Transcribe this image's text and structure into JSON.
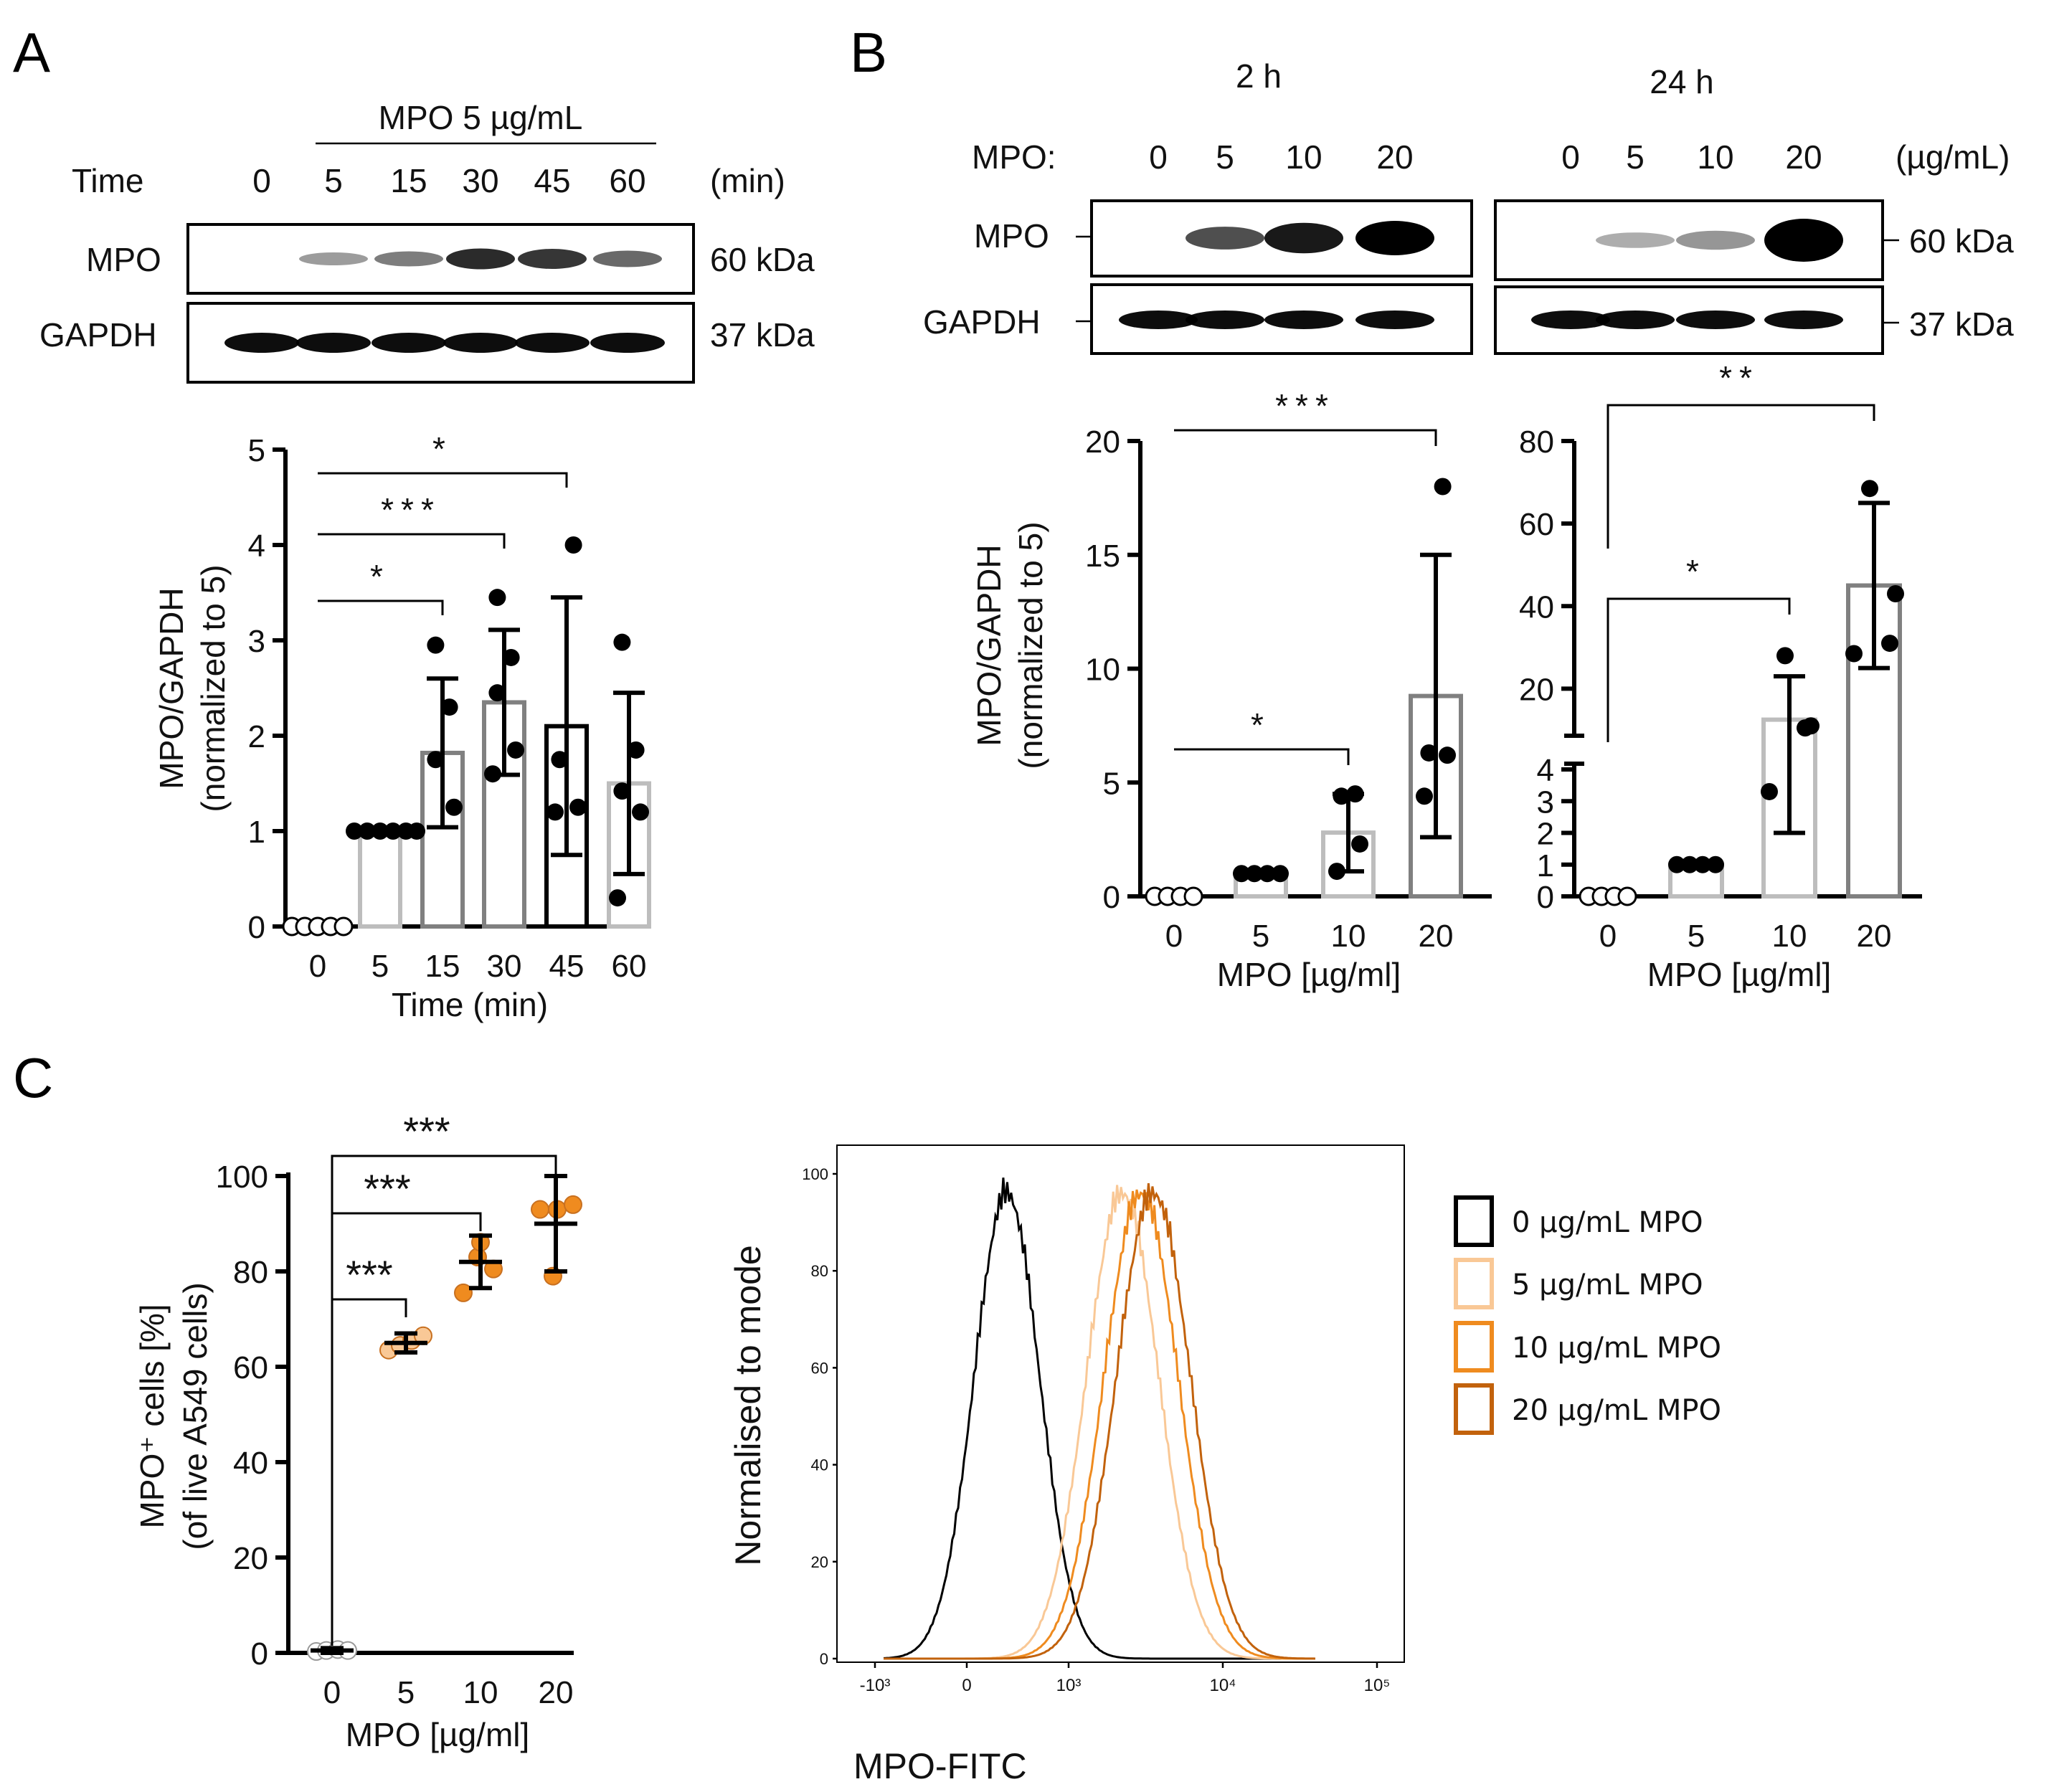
{
  "panel_labels": {
    "a": "A",
    "b": "B",
    "c": "C"
  },
  "colors": {
    "c0": "#000000",
    "c5": "#f9c896",
    "c10": "#ef8b1f",
    "c20": "#c2620c",
    "bar_light": "#bdbdbd",
    "bar_mid": "#808080",
    "bar_dark": "#000000"
  },
  "blotA": {
    "header": "MPO 5 µg/mL",
    "time_label": "Time",
    "time_values": [
      "0",
      "5",
      "15",
      "30",
      "45",
      "60"
    ],
    "time_unit": "(min)",
    "rows": [
      "MPO",
      "GAPDH"
    ],
    "sizes": [
      "60 kDa",
      "37 kDa"
    ],
    "band_intensity": {
      "MPO": [
        0,
        0.3,
        0.45,
        0.85,
        0.8,
        0.55
      ],
      "GAPDH": [
        1,
        1,
        1,
        1,
        1,
        1
      ]
    }
  },
  "blotB": {
    "time_2h": "2 h",
    "time_24h": "24 h",
    "mpo_label": "MPO:",
    "conc_values": [
      "0",
      "5",
      "10",
      "20"
    ],
    "conc_unit": "(µg/mL)",
    "rows": [
      "MPO",
      "GAPDH"
    ],
    "sizes": [
      "60 kDa",
      "37 kDa"
    ],
    "band_intensity_2h": {
      "MPO": [
        0,
        0.55,
        0.85,
        1
      ],
      "GAPDH": [
        1,
        1,
        1,
        1
      ]
    },
    "band_intensity_24h": {
      "MPO": [
        0,
        0.2,
        0.3,
        1
      ],
      "GAPDH": [
        1,
        1,
        1,
        1
      ]
    }
  },
  "chart_data": [
    {
      "type": "bar",
      "panel": "A",
      "categories": [
        "0",
        "5",
        "15",
        "30",
        "45",
        "60"
      ],
      "xlabel": "Time (min)",
      "ylabel": [
        "MPO/GAPDH",
        "(normalized to 5)"
      ],
      "ylim": [
        0,
        5
      ],
      "yticks": [
        "0",
        "1",
        "2",
        "3",
        "4",
        "5"
      ],
      "means": [
        0,
        1,
        1.82,
        2.35,
        2.1,
        1.5
      ],
      "sd": [
        0,
        0,
        0.78,
        0.76,
        1.35,
        0.95
      ],
      "points": [
        [
          0,
          0,
          0,
          0,
          0
        ],
        [
          1,
          1,
          1,
          1,
          1
        ],
        [
          1.0,
          1.25,
          1.75,
          2.3,
          2.95
        ],
        [
          1.6,
          1.85,
          2.45,
          2.82,
          3.45
        ],
        [
          1.2,
          1.25,
          1.75,
          4.0
        ],
        [
          0.3,
          1.2,
          1.42,
          1.85,
          2.98
        ]
      ],
      "significance": [
        {
          "from": "0",
          "to": "15",
          "label": "*"
        },
        {
          "from": "0",
          "to": "30",
          "label": "***"
        },
        {
          "from": "0",
          "to": "45",
          "label": "*"
        }
      ]
    },
    {
      "type": "bar",
      "panel": "B-2h",
      "categories": [
        "0",
        "5",
        "10",
        "20"
      ],
      "xlabel": "MPO [µg/ml]",
      "ylabel": [
        "MPO/GAPDH",
        "(normalized to 5)"
      ],
      "ylim": [
        0,
        20
      ],
      "yticks": [
        "0",
        "5",
        "10",
        "15",
        "20"
      ],
      "means": [
        0,
        1,
        2.8,
        8.8
      ],
      "sd": [
        0,
        0,
        1.7,
        6.2
      ],
      "points": [
        [
          0,
          0,
          0,
          0
        ],
        [
          1,
          1,
          1,
          1
        ],
        [
          1.1,
          2.3,
          4.4,
          4.5
        ],
        [
          4.4,
          6.2,
          6.3,
          18
        ]
      ],
      "significance": [
        {
          "from": "0",
          "to": "10",
          "label": "*"
        },
        {
          "from": "0",
          "to": "20",
          "label": "***"
        }
      ]
    },
    {
      "type": "bar",
      "panel": "B-24h",
      "categories": [
        "0",
        "5",
        "10",
        "20"
      ],
      "xlabel": "MPO [µg/ml]",
      "ylabel": "",
      "ylim": [
        0,
        80
      ],
      "broken_axis": [
        4,
        10
      ],
      "yticks_lower": [
        "0",
        "1",
        "2",
        "3",
        "4"
      ],
      "yticks_upper": [
        "20",
        "40",
        "60",
        "80"
      ],
      "means": [
        0,
        1,
        12.5,
        45
      ],
      "sd": [
        0,
        0,
        10.5,
        20
      ],
      "points": [
        [
          0,
          0,
          0,
          0
        ],
        [
          1,
          1,
          1,
          1
        ],
        [
          3.3,
          10.5,
          11,
          28
        ],
        [
          28.5,
          31,
          43,
          68.5
        ]
      ],
      "significance": [
        {
          "from": "0",
          "to": "10",
          "label": "*"
        },
        {
          "from": "0",
          "to": "20",
          "label": "**"
        }
      ]
    },
    {
      "type": "scatter",
      "panel": "C-left",
      "categories": [
        "0",
        "5",
        "10",
        "20"
      ],
      "xlabel": "MPO [µg/ml]",
      "ylabel": [
        "MPO⁺ cells [%]",
        "(of live A549 cells)"
      ],
      "ylim": [
        0,
        100
      ],
      "yticks": [
        "0",
        "20",
        "40",
        "60",
        "80",
        "100"
      ],
      "means": [
        0.5,
        65,
        82,
        90
      ],
      "sd": [
        0.5,
        2,
        5.5,
        10
      ],
      "points": [
        [
          0.3,
          0.5,
          0.7,
          0.5
        ],
        [
          63.5,
          64.5,
          65.5,
          66.5
        ],
        [
          75.5,
          80.5,
          83,
          84
        ],
        [
          79,
          93,
          93,
          94
        ]
      ],
      "significance": [
        {
          "from": "0",
          "to": "5",
          "label": "***"
        },
        {
          "from": "0",
          "to": "10",
          "label": "***"
        },
        {
          "from": "0",
          "to": "20",
          "label": "***"
        }
      ]
    },
    {
      "type": "area",
      "panel": "C-right",
      "xlabel": "MPO-FITC",
      "ylabel": "Normalised to mode",
      "ylim": [
        0,
        100
      ],
      "yticks": [
        "0",
        "20",
        "40",
        "60",
        "80",
        "100"
      ],
      "xticks": [
        "-10³",
        "0",
        "10³",
        "10⁴",
        "10⁵"
      ],
      "series": [
        {
          "name": "0 µg/mL MPO",
          "peak_decade": 2.6,
          "width": 0.38
        },
        {
          "name": "5 µg/mL MPO",
          "peak_decade": 3.35,
          "width": 0.42
        },
        {
          "name": "10 µg/mL MPO",
          "peak_decade": 3.47,
          "width": 0.43
        },
        {
          "name": "20 µg/mL MPO",
          "peak_decade": 3.55,
          "width": 0.43
        }
      ]
    }
  ]
}
